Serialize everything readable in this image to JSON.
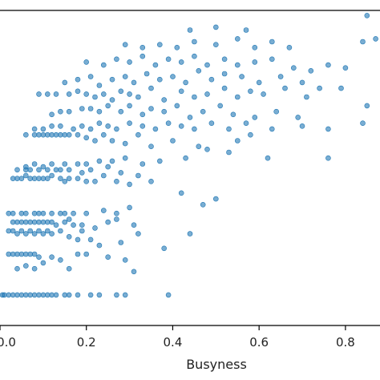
{
  "chart_data": {
    "type": "scatter",
    "title": "",
    "xlabel": "Busyness",
    "ylabel": "",
    "xlim": [
      0.0,
      0.88
    ],
    "ylim": [
      0.0,
      1.0
    ],
    "x_ticks": [
      "0.0",
      "0.2",
      "0.4",
      "0.6",
      "0.8"
    ],
    "x_tick_values": [
      0.0,
      0.2,
      0.4,
      0.6,
      0.8
    ],
    "grid": false,
    "legend": "none",
    "marker_color": "#1f77b4",
    "marker_alpha": 0.6,
    "series": [
      {
        "points": [
          [
            0.0,
            0.05
          ],
          [
            0.01,
            0.05
          ],
          [
            0.02,
            0.05
          ],
          [
            0.03,
            0.05
          ],
          [
            0.04,
            0.05
          ],
          [
            0.05,
            0.05
          ],
          [
            0.06,
            0.05
          ],
          [
            0.07,
            0.05
          ],
          [
            0.08,
            0.05
          ],
          [
            0.09,
            0.05
          ],
          [
            0.1,
            0.05
          ],
          [
            0.11,
            0.05
          ],
          [
            0.12,
            0.05
          ],
          [
            0.13,
            0.05
          ],
          [
            0.15,
            0.05
          ],
          [
            0.16,
            0.05
          ],
          [
            0.18,
            0.05
          ],
          [
            0.21,
            0.05
          ],
          [
            0.23,
            0.05
          ],
          [
            0.27,
            0.05
          ],
          [
            0.29,
            0.05
          ],
          [
            0.39,
            0.05
          ],
          [
            0.04,
            0.14
          ],
          [
            0.06,
            0.15
          ],
          [
            0.08,
            0.14
          ],
          [
            0.1,
            0.16
          ],
          [
            0.16,
            0.14
          ],
          [
            0.31,
            0.13
          ],
          [
            0.02,
            0.19
          ],
          [
            0.03,
            0.19
          ],
          [
            0.04,
            0.19
          ],
          [
            0.05,
            0.19
          ],
          [
            0.06,
            0.19
          ],
          [
            0.07,
            0.19
          ],
          [
            0.08,
            0.19
          ],
          [
            0.09,
            0.18
          ],
          [
            0.12,
            0.18
          ],
          [
            0.14,
            0.17
          ],
          [
            0.18,
            0.19
          ],
          [
            0.2,
            0.19
          ],
          [
            0.25,
            0.18
          ],
          [
            0.29,
            0.17
          ],
          [
            0.02,
            0.27
          ],
          [
            0.03,
            0.27
          ],
          [
            0.04,
            0.26
          ],
          [
            0.05,
            0.27
          ],
          [
            0.06,
            0.26
          ],
          [
            0.07,
            0.27
          ],
          [
            0.08,
            0.26
          ],
          [
            0.09,
            0.27
          ],
          [
            0.1,
            0.26
          ],
          [
            0.11,
            0.27
          ],
          [
            0.12,
            0.26
          ],
          [
            0.14,
            0.27
          ],
          [
            0.16,
            0.25
          ],
          [
            0.18,
            0.24
          ],
          [
            0.19,
            0.27
          ],
          [
            0.21,
            0.24
          ],
          [
            0.23,
            0.22
          ],
          [
            0.28,
            0.23
          ],
          [
            0.32,
            0.26
          ],
          [
            0.38,
            0.21
          ],
          [
            0.44,
            0.26
          ],
          [
            0.03,
            0.3
          ],
          [
            0.04,
            0.3
          ],
          [
            0.05,
            0.3
          ],
          [
            0.06,
            0.3
          ],
          [
            0.07,
            0.3
          ],
          [
            0.08,
            0.3
          ],
          [
            0.09,
            0.3
          ],
          [
            0.1,
            0.3
          ],
          [
            0.11,
            0.3
          ],
          [
            0.12,
            0.3
          ],
          [
            0.13,
            0.29
          ],
          [
            0.15,
            0.3
          ],
          [
            0.16,
            0.31
          ],
          [
            0.17,
            0.29
          ],
          [
            0.19,
            0.29
          ],
          [
            0.22,
            0.28
          ],
          [
            0.25,
            0.3
          ],
          [
            0.27,
            0.31
          ],
          [
            0.31,
            0.29
          ],
          [
            0.02,
            0.33
          ],
          [
            0.03,
            0.33
          ],
          [
            0.05,
            0.33
          ],
          [
            0.06,
            0.33
          ],
          [
            0.08,
            0.33
          ],
          [
            0.09,
            0.33
          ],
          [
            0.1,
            0.33
          ],
          [
            0.12,
            0.33
          ],
          [
            0.14,
            0.33
          ],
          [
            0.15,
            0.33
          ],
          [
            0.17,
            0.33
          ],
          [
            0.2,
            0.33
          ],
          [
            0.24,
            0.34
          ],
          [
            0.27,
            0.33
          ],
          [
            0.3,
            0.35
          ],
          [
            0.03,
            0.45
          ],
          [
            0.04,
            0.45
          ],
          [
            0.05,
            0.45
          ],
          [
            0.06,
            0.46
          ],
          [
            0.07,
            0.45
          ],
          [
            0.08,
            0.45
          ],
          [
            0.09,
            0.45
          ],
          [
            0.1,
            0.45
          ],
          [
            0.11,
            0.45
          ],
          [
            0.12,
            0.46
          ],
          [
            0.14,
            0.45
          ],
          [
            0.15,
            0.44
          ],
          [
            0.16,
            0.45
          ],
          [
            0.18,
            0.45
          ],
          [
            0.2,
            0.44
          ],
          [
            0.22,
            0.44
          ],
          [
            0.24,
            0.46
          ],
          [
            0.27,
            0.44
          ],
          [
            0.3,
            0.43
          ],
          [
            0.35,
            0.44
          ],
          [
            0.42,
            0.4
          ],
          [
            0.47,
            0.36
          ],
          [
            0.5,
            0.38
          ],
          [
            0.04,
            0.48
          ],
          [
            0.06,
            0.48
          ],
          [
            0.07,
            0.48
          ],
          [
            0.09,
            0.48
          ],
          [
            0.11,
            0.48
          ],
          [
            0.13,
            0.48
          ],
          [
            0.14,
            0.48
          ],
          [
            0.16,
            0.48
          ],
          [
            0.19,
            0.47
          ],
          [
            0.21,
            0.48
          ],
          [
            0.25,
            0.49
          ],
          [
            0.28,
            0.47
          ],
          [
            0.32,
            0.46
          ],
          [
            0.06,
            0.49
          ],
          [
            0.08,
            0.5
          ],
          [
            0.1,
            0.49
          ],
          [
            0.12,
            0.5
          ],
          [
            0.15,
            0.5
          ],
          [
            0.18,
            0.5
          ],
          [
            0.2,
            0.5
          ],
          [
            0.23,
            0.51
          ],
          [
            0.26,
            0.51
          ],
          [
            0.29,
            0.52
          ],
          [
            0.33,
            0.5
          ],
          [
            0.37,
            0.51
          ],
          [
            0.43,
            0.52
          ],
          [
            0.48,
            0.55
          ],
          [
            0.55,
            0.58
          ],
          [
            0.62,
            0.52
          ],
          [
            0.06,
            0.6
          ],
          [
            0.08,
            0.6
          ],
          [
            0.09,
            0.6
          ],
          [
            0.1,
            0.6
          ],
          [
            0.11,
            0.6
          ],
          [
            0.12,
            0.6
          ],
          [
            0.13,
            0.6
          ],
          [
            0.14,
            0.6
          ],
          [
            0.15,
            0.6
          ],
          [
            0.16,
            0.6
          ],
          [
            0.18,
            0.6
          ],
          [
            0.2,
            0.59
          ],
          [
            0.22,
            0.58
          ],
          [
            0.24,
            0.6
          ],
          [
            0.26,
            0.58
          ],
          [
            0.29,
            0.57
          ],
          [
            0.32,
            0.6
          ],
          [
            0.35,
            0.56
          ],
          [
            0.4,
            0.58
          ],
          [
            0.46,
            0.56
          ],
          [
            0.53,
            0.54
          ],
          [
            0.58,
            0.6
          ],
          [
            0.76,
            0.52
          ],
          [
            0.08,
            0.62
          ],
          [
            0.1,
            0.62
          ],
          [
            0.12,
            0.63
          ],
          [
            0.14,
            0.63
          ],
          [
            0.17,
            0.62
          ],
          [
            0.19,
            0.63
          ],
          [
            0.21,
            0.62
          ],
          [
            0.23,
            0.64
          ],
          [
            0.25,
            0.63
          ],
          [
            0.27,
            0.62
          ],
          [
            0.3,
            0.64
          ],
          [
            0.33,
            0.63
          ],
          [
            0.36,
            0.62
          ],
          [
            0.39,
            0.64
          ],
          [
            0.42,
            0.63
          ],
          [
            0.45,
            0.62
          ],
          [
            0.49,
            0.64
          ],
          [
            0.53,
            0.62
          ],
          [
            0.57,
            0.64
          ],
          [
            0.63,
            0.62
          ],
          [
            0.7,
            0.63
          ],
          [
            0.76,
            0.62
          ],
          [
            0.12,
            0.67
          ],
          [
            0.14,
            0.68
          ],
          [
            0.16,
            0.68
          ],
          [
            0.19,
            0.69
          ],
          [
            0.21,
            0.69
          ],
          [
            0.23,
            0.68
          ],
          [
            0.25,
            0.7
          ],
          [
            0.28,
            0.68
          ],
          [
            0.3,
            0.7
          ],
          [
            0.33,
            0.67
          ],
          [
            0.35,
            0.69
          ],
          [
            0.38,
            0.68
          ],
          [
            0.41,
            0.7
          ],
          [
            0.44,
            0.66
          ],
          [
            0.47,
            0.68
          ],
          [
            0.51,
            0.7
          ],
          [
            0.54,
            0.67
          ],
          [
            0.59,
            0.66
          ],
          [
            0.64,
            0.68
          ],
          [
            0.69,
            0.66
          ],
          [
            0.84,
            0.64
          ],
          [
            0.09,
            0.74
          ],
          [
            0.11,
            0.74
          ],
          [
            0.13,
            0.74
          ],
          [
            0.16,
            0.74
          ],
          [
            0.18,
            0.75
          ],
          [
            0.2,
            0.74
          ],
          [
            0.22,
            0.73
          ],
          [
            0.24,
            0.74
          ],
          [
            0.26,
            0.72
          ],
          [
            0.28,
            0.75
          ],
          [
            0.3,
            0.74
          ],
          [
            0.32,
            0.73
          ],
          [
            0.35,
            0.76
          ],
          [
            0.38,
            0.72
          ],
          [
            0.42,
            0.75
          ],
          [
            0.45,
            0.73
          ],
          [
            0.48,
            0.74
          ],
          [
            0.52,
            0.76
          ],
          [
            0.55,
            0.73
          ],
          [
            0.58,
            0.75
          ],
          [
            0.61,
            0.74
          ],
          [
            0.66,
            0.76
          ],
          [
            0.71,
            0.73
          ],
          [
            0.85,
            0.7
          ],
          [
            0.15,
            0.78
          ],
          [
            0.18,
            0.79
          ],
          [
            0.21,
            0.8
          ],
          [
            0.23,
            0.77
          ],
          [
            0.26,
            0.79
          ],
          [
            0.29,
            0.8
          ],
          [
            0.31,
            0.78
          ],
          [
            0.34,
            0.81
          ],
          [
            0.37,
            0.79
          ],
          [
            0.4,
            0.8
          ],
          [
            0.43,
            0.78
          ],
          [
            0.46,
            0.82
          ],
          [
            0.49,
            0.79
          ],
          [
            0.52,
            0.81
          ],
          [
            0.56,
            0.8
          ],
          [
            0.6,
            0.78
          ],
          [
            0.65,
            0.8
          ],
          [
            0.7,
            0.78
          ],
          [
            0.74,
            0.76
          ],
          [
            0.79,
            0.76
          ],
          [
            0.2,
            0.85
          ],
          [
            0.24,
            0.84
          ],
          [
            0.27,
            0.86
          ],
          [
            0.3,
            0.85
          ],
          [
            0.33,
            0.87
          ],
          [
            0.36,
            0.84
          ],
          [
            0.39,
            0.86
          ],
          [
            0.42,
            0.85
          ],
          [
            0.45,
            0.87
          ],
          [
            0.48,
            0.84
          ],
          [
            0.52,
            0.86
          ],
          [
            0.55,
            0.84
          ],
          [
            0.59,
            0.85
          ],
          [
            0.63,
            0.86
          ],
          [
            0.68,
            0.83
          ],
          [
            0.72,
            0.82
          ],
          [
            0.76,
            0.84
          ],
          [
            0.8,
            0.83
          ],
          [
            0.29,
            0.91
          ],
          [
            0.33,
            0.9
          ],
          [
            0.37,
            0.91
          ],
          [
            0.41,
            0.9
          ],
          [
            0.45,
            0.92
          ],
          [
            0.5,
            0.91
          ],
          [
            0.55,
            0.93
          ],
          [
            0.59,
            0.9
          ],
          [
            0.63,
            0.92
          ],
          [
            0.67,
            0.9
          ],
          [
            0.44,
            0.96
          ],
          [
            0.5,
            0.97
          ],
          [
            0.57,
            0.96
          ],
          [
            0.84,
            0.92
          ],
          [
            0.87,
            0.93
          ],
          [
            0.85,
            1.01
          ]
        ]
      }
    ]
  }
}
